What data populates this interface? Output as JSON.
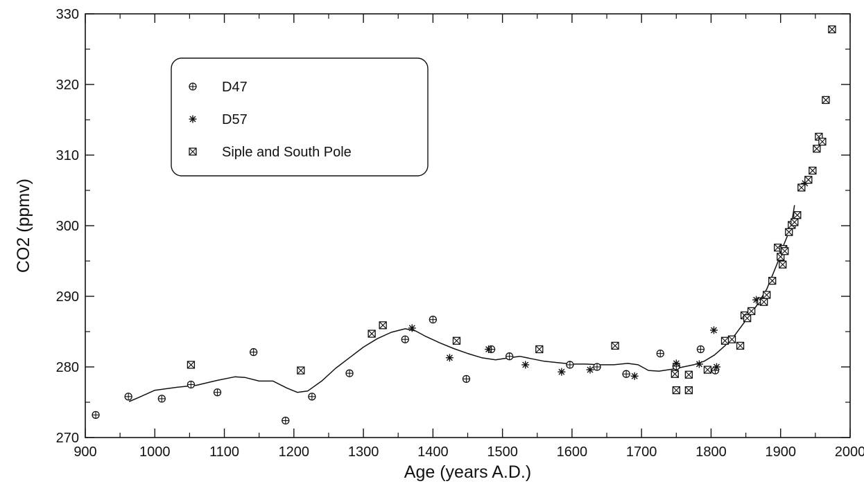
{
  "chart_data": {
    "type": "scatter",
    "title": "",
    "xlabel": "Age (years A.D.)",
    "ylabel": "CO2 (ppmv)",
    "xlim": [
      900,
      2000
    ],
    "ylim": [
      270,
      330
    ],
    "x_ticks": [
      900,
      1000,
      1100,
      1200,
      1300,
      1400,
      1500,
      1600,
      1700,
      1800,
      1900,
      2000
    ],
    "y_ticks": [
      270,
      280,
      290,
      300,
      310,
      320,
      330
    ],
    "x_tick_labels": [
      "900",
      "1000",
      "1100",
      "1200",
      "1300",
      "1400",
      "1500",
      "1600",
      "1700",
      "1800",
      "1900",
      "2000"
    ],
    "y_tick_labels": [
      "270",
      "280",
      "290",
      "300",
      "310",
      "320",
      "330"
    ],
    "grid": false,
    "legend_position": "top-left",
    "legend": [
      {
        "label": "D47",
        "marker": "circle-plus"
      },
      {
        "label": "D57",
        "marker": "asterisk"
      },
      {
        "label": "Siple and South Pole",
        "marker": "square-x"
      }
    ],
    "series": [
      {
        "name": "D47",
        "marker": "circle-plus",
        "points": [
          [
            915,
            273.2
          ],
          [
            962,
            275.8
          ],
          [
            1010,
            275.5
          ],
          [
            1052,
            277.5
          ],
          [
            1090,
            276.4
          ],
          [
            1142,
            282.1
          ],
          [
            1188,
            272.4
          ],
          [
            1226,
            275.8
          ],
          [
            1280,
            279.1
          ],
          [
            1360,
            283.9
          ],
          [
            1400,
            286.7
          ],
          [
            1448,
            278.3
          ],
          [
            1484,
            282.5
          ],
          [
            1510,
            281.5
          ],
          [
            1597,
            280.3
          ],
          [
            1636,
            280.0
          ],
          [
            1678,
            279.0
          ],
          [
            1727,
            281.9
          ],
          [
            1750,
            280.1
          ],
          [
            1785,
            282.5
          ],
          [
            1806,
            279.5
          ]
        ]
      },
      {
        "name": "D57",
        "marker": "asterisk",
        "points": [
          [
            1312,
            284.7
          ],
          [
            1370,
            285.5
          ],
          [
            1424,
            281.3
          ],
          [
            1480,
            282.5
          ],
          [
            1533,
            280.3
          ],
          [
            1585,
            279.3
          ],
          [
            1626,
            279.6
          ],
          [
            1690,
            278.7
          ],
          [
            1750,
            280.5
          ],
          [
            1783,
            280.4
          ],
          [
            1804,
            285.2
          ],
          [
            1808,
            280.0
          ],
          [
            1865,
            289.5
          ],
          [
            1935,
            306.0
          ]
        ]
      },
      {
        "name": "Siple and South Pole",
        "marker": "square-x",
        "points": [
          [
            1052,
            280.3
          ],
          [
            1210,
            279.5
          ],
          [
            1312,
            284.7
          ],
          [
            1328,
            285.9
          ],
          [
            1434,
            283.7
          ],
          [
            1553,
            282.5
          ],
          [
            1662,
            283.0
          ],
          [
            1748,
            279.0
          ],
          [
            1750,
            276.7
          ],
          [
            1768,
            278.9
          ],
          [
            1768,
            276.7
          ],
          [
            1795,
            279.6
          ],
          [
            1820,
            283.7
          ],
          [
            1830,
            283.9
          ],
          [
            1842,
            283.0
          ],
          [
            1848,
            287.3
          ],
          [
            1852,
            286.9
          ],
          [
            1858,
            287.9
          ],
          [
            1872,
            289.3
          ],
          [
            1876,
            289.2
          ],
          [
            1880,
            290.2
          ],
          [
            1888,
            292.2
          ],
          [
            1896,
            296.9
          ],
          [
            1900,
            295.6
          ],
          [
            1903,
            294.5
          ],
          [
            1904,
            296.7
          ],
          [
            1906,
            296.4
          ],
          [
            1912,
            299.1
          ],
          [
            1916,
            300.1
          ],
          [
            1920,
            300.5
          ],
          [
            1924,
            301.5
          ],
          [
            1930,
            305.4
          ],
          [
            1940,
            306.5
          ],
          [
            1946,
            307.8
          ],
          [
            1952,
            310.9
          ],
          [
            1955,
            312.6
          ],
          [
            1960,
            311.9
          ],
          [
            1965,
            317.8
          ],
          [
            1974,
            327.8
          ]
        ]
      },
      {
        "name": "",
        "type": "line",
        "points": [
          [
            963,
            275.1
          ],
          [
            975,
            275.6
          ],
          [
            1000,
            276.7
          ],
          [
            1030,
            277.1
          ],
          [
            1060,
            277.4
          ],
          [
            1090,
            278.1
          ],
          [
            1115,
            278.6
          ],
          [
            1130,
            278.5
          ],
          [
            1150,
            278.0
          ],
          [
            1170,
            278.0
          ],
          [
            1190,
            277.0
          ],
          [
            1205,
            276.4
          ],
          [
            1220,
            276.6
          ],
          [
            1240,
            278.0
          ],
          [
            1260,
            279.8
          ],
          [
            1280,
            281.3
          ],
          [
            1300,
            282.8
          ],
          [
            1320,
            284.0
          ],
          [
            1340,
            284.9
          ],
          [
            1360,
            285.4
          ],
          [
            1375,
            285.1
          ],
          [
            1390,
            284.3
          ],
          [
            1410,
            283.4
          ],
          [
            1430,
            282.6
          ],
          [
            1450,
            281.9
          ],
          [
            1470,
            281.3
          ],
          [
            1490,
            281.0
          ],
          [
            1510,
            281.3
          ],
          [
            1525,
            281.5
          ],
          [
            1540,
            281.2
          ],
          [
            1560,
            280.8
          ],
          [
            1580,
            280.6
          ],
          [
            1600,
            280.4
          ],
          [
            1620,
            280.4
          ],
          [
            1640,
            280.3
          ],
          [
            1660,
            280.3
          ],
          [
            1680,
            280.5
          ],
          [
            1695,
            280.3
          ],
          [
            1710,
            279.5
          ],
          [
            1725,
            279.4
          ],
          [
            1745,
            279.7
          ],
          [
            1760,
            280.0
          ],
          [
            1775,
            280.3
          ],
          [
            1790,
            280.8
          ],
          [
            1805,
            281.7
          ],
          [
            1820,
            283.0
          ],
          [
            1835,
            284.6
          ],
          [
            1850,
            286.6
          ],
          [
            1865,
            288.6
          ],
          [
            1880,
            291.0
          ],
          [
            1895,
            294.6
          ],
          [
            1905,
            297.4
          ],
          [
            1915,
            299.8
          ],
          [
            1920,
            302.9
          ]
        ]
      }
    ]
  }
}
